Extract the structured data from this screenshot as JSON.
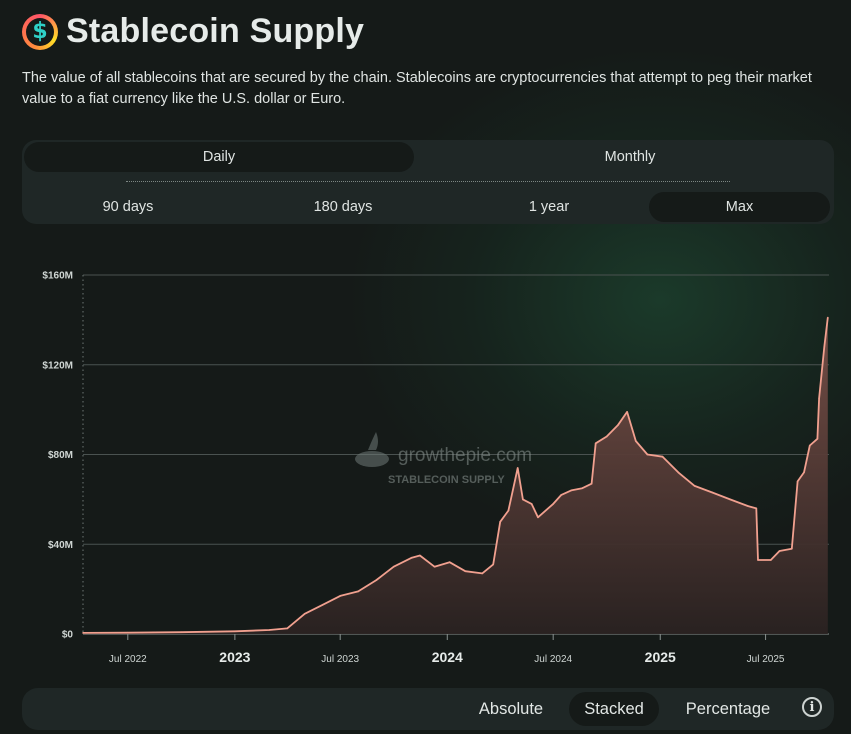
{
  "header": {
    "icon": "dollar-coin-icon",
    "icon_glyph": "$",
    "title": "Stablecoin Supply",
    "description": "The value of all stablecoins that are secured by the chain. Stablecoins are cryptocurrencies that attempt to peg their market value to a fiat currency like the U.S. dollar or Euro."
  },
  "granularity": {
    "options": [
      "Daily",
      "Monthly"
    ],
    "selected": "Daily"
  },
  "timespan": {
    "options": [
      "90 days",
      "180 days",
      "1 year",
      "Max"
    ],
    "selected": "Max"
  },
  "modes": {
    "options": [
      "Absolute",
      "Stacked",
      "Percentage"
    ],
    "selected": "Stacked",
    "info_icon": "info-icon",
    "info_glyph": "i"
  },
  "watermark": {
    "brand": "growthepie.com",
    "subtitle": "STABLECOIN SUPPLY"
  },
  "colors": {
    "series": "#f1a08f",
    "fill_top": "#7a5048",
    "fill_bottom": "#2a2221",
    "grid": "#4a5250",
    "text": "#cfd6d3"
  },
  "chart_data": {
    "type": "area",
    "title": "Stablecoin Supply",
    "ylabel": "USD",
    "ylim": [
      0,
      160
    ],
    "y_unit": "M",
    "y_ticks": [
      {
        "value": 0,
        "label": "$0"
      },
      {
        "value": 40,
        "label": "$40M"
      },
      {
        "value": 80,
        "label": "$80M"
      },
      {
        "value": 120,
        "label": "$120M"
      },
      {
        "value": 160,
        "label": "$160M"
      }
    ],
    "xlim": [
      "2022-04-15",
      "2025-10-18"
    ],
    "x_ticks": [
      {
        "date": "2022-07-01",
        "label": "Jul 2022",
        "major": false
      },
      {
        "date": "2023-01-01",
        "label": "2023",
        "major": true
      },
      {
        "date": "2023-07-01",
        "label": "Jul 2023",
        "major": false
      },
      {
        "date": "2024-01-01",
        "label": "2024",
        "major": true
      },
      {
        "date": "2024-07-01",
        "label": "Jul 2024",
        "major": false
      },
      {
        "date": "2025-01-01",
        "label": "2025",
        "major": true
      },
      {
        "date": "2025-07-01",
        "label": "Jul 2025",
        "major": false
      }
    ],
    "series": [
      {
        "name": "Stablecoin Supply",
        "points": [
          [
            "2022-04-15",
            0.5
          ],
          [
            "2022-07-01",
            0.6
          ],
          [
            "2022-10-01",
            0.8
          ],
          [
            "2023-01-01",
            1.2
          ],
          [
            "2023-03-01",
            1.8
          ],
          [
            "2023-04-01",
            2.5
          ],
          [
            "2023-05-01",
            9
          ],
          [
            "2023-06-01",
            13
          ],
          [
            "2023-07-01",
            17
          ],
          [
            "2023-08-01",
            19
          ],
          [
            "2023-09-01",
            24
          ],
          [
            "2023-10-01",
            30
          ],
          [
            "2023-11-01",
            34
          ],
          [
            "2023-11-15",
            35
          ],
          [
            "2023-12-10",
            30
          ],
          [
            "2024-01-05",
            32
          ],
          [
            "2024-02-01",
            28
          ],
          [
            "2024-03-01",
            27
          ],
          [
            "2024-03-20",
            31
          ],
          [
            "2024-04-01",
            50
          ],
          [
            "2024-04-15",
            55
          ],
          [
            "2024-05-01",
            74
          ],
          [
            "2024-05-10",
            60
          ],
          [
            "2024-05-25",
            58
          ],
          [
            "2024-06-05",
            52
          ],
          [
            "2024-07-01",
            58
          ],
          [
            "2024-07-15",
            62
          ],
          [
            "2024-08-01",
            64
          ],
          [
            "2024-08-20",
            65
          ],
          [
            "2024-09-05",
            67
          ],
          [
            "2024-09-12",
            85
          ],
          [
            "2024-10-01",
            88
          ],
          [
            "2024-10-20",
            93
          ],
          [
            "2024-11-05",
            99
          ],
          [
            "2024-11-20",
            86
          ],
          [
            "2024-12-10",
            80
          ],
          [
            "2025-01-05",
            79
          ],
          [
            "2025-02-01",
            72
          ],
          [
            "2025-03-01",
            66
          ],
          [
            "2025-04-01",
            63
          ],
          [
            "2025-05-01",
            60
          ],
          [
            "2025-06-01",
            57
          ],
          [
            "2025-06-15",
            56
          ],
          [
            "2025-06-18",
            33
          ],
          [
            "2025-07-10",
            33
          ],
          [
            "2025-07-25",
            37
          ],
          [
            "2025-08-15",
            38
          ],
          [
            "2025-08-25",
            68
          ],
          [
            "2025-09-05",
            72
          ],
          [
            "2025-09-15",
            84
          ],
          [
            "2025-09-28",
            87
          ],
          [
            "2025-10-01",
            105
          ],
          [
            "2025-10-10",
            128
          ],
          [
            "2025-10-16",
            141
          ]
        ]
      }
    ]
  }
}
